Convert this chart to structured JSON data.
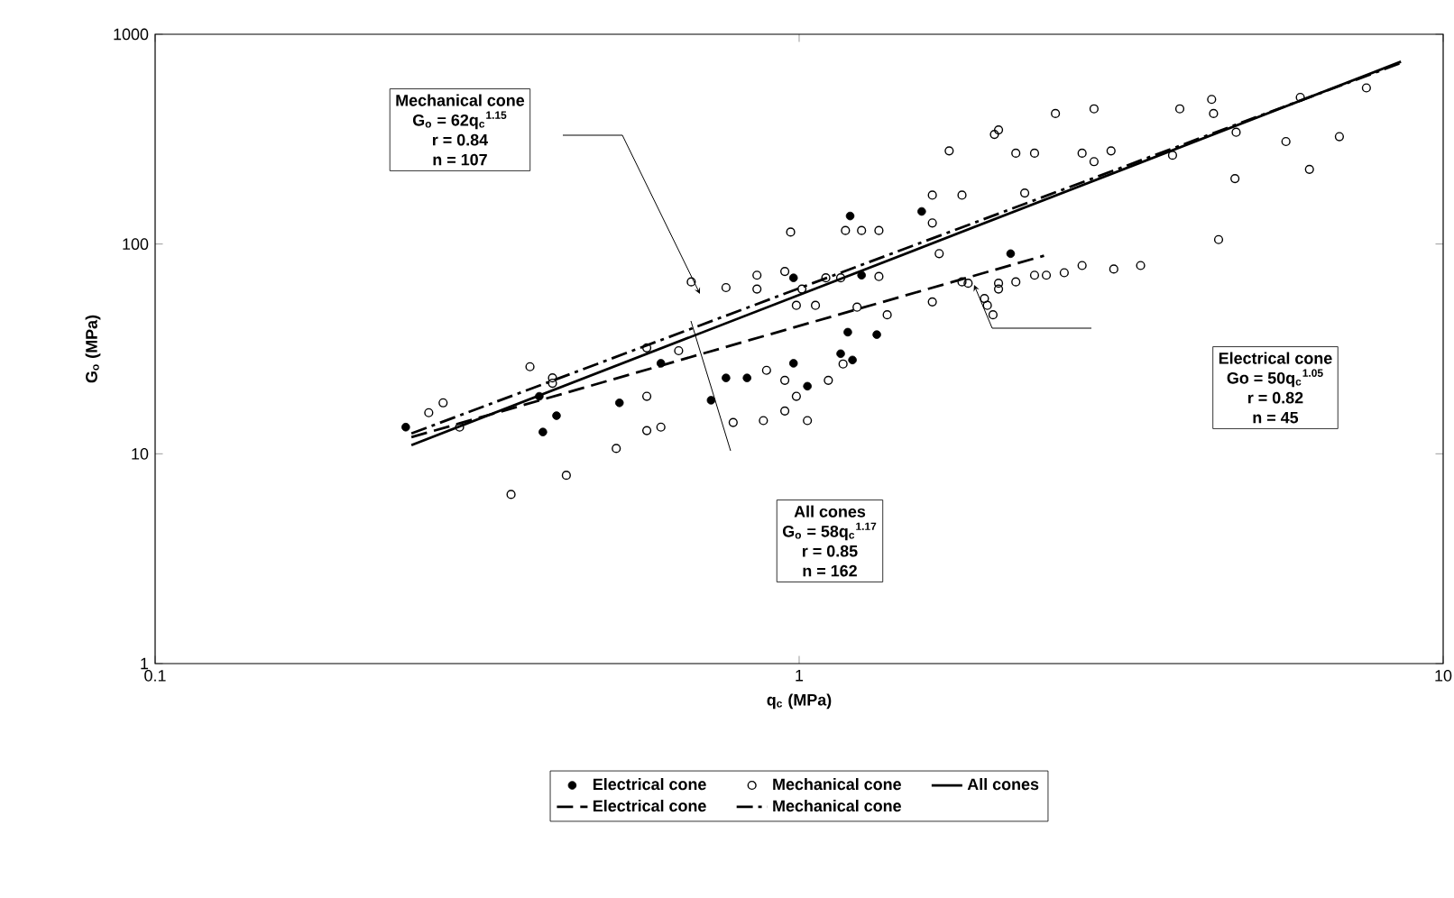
{
  "chart_data": {
    "type": "scatter",
    "xlabel": "q$_{c}$ (MPa)",
    "ylabel": "G$_{o}$ (MPa)",
    "log": "xy",
    "xlim": [
      0.1,
      10
    ],
    "ylim": [
      1,
      1000
    ],
    "xticks": [
      0.1,
      1,
      10
    ],
    "yticks": [
      1,
      10,
      100,
      1000
    ],
    "legend": "bottom",
    "series": [
      {
        "name": "Electrical cone",
        "marker": "circle",
        "color": "#000000",
        "x": [
          0.245,
          0.395,
          0.4,
          0.42,
          0.526,
          0.61,
          0.73,
          0.77,
          0.83,
          0.98,
          1.03,
          1.16,
          1.21,
          1.32,
          1.25,
          1.2,
          1.55,
          0.98,
          1.19,
          2.13
        ],
        "values": [
          13.4,
          18.8,
          12.7,
          15.2,
          17.5,
          27,
          18,
          23,
          23,
          27,
          21,
          30,
          28,
          37,
          71,
          136,
          143,
          69,
          38,
          90
        ]
      },
      {
        "name": "Mechanical cone",
        "marker": "circle_open",
        "color": "#000000",
        "x": [
          0.382,
          0.414,
          0.414,
          0.266,
          0.28,
          0.297,
          0.357,
          0.435,
          0.52,
          0.58,
          0.61,
          0.58,
          0.65,
          0.68,
          0.77,
          0.86,
          0.86,
          0.97,
          0.95,
          1.01,
          1.1,
          1.16,
          1.33,
          1.18,
          1.25,
          1.33,
          1.61,
          1.61,
          1.71,
          1.79,
          2.01,
          0.89,
          0.95,
          0.99,
          0.95,
          0.88,
          0.79,
          1.03,
          1.11,
          1.17,
          0.99,
          1.06,
          1.23,
          1.37,
          1.61,
          1.65,
          1.79,
          1.94,
          2.0,
          0.58,
          2.04,
          2.17,
          2.32,
          2.24,
          2.5,
          2.75,
          2.87,
          2.87,
          3.05,
          3.8,
          3.9,
          4.37,
          4.4,
          4.77,
          4.75,
          4.48,
          5.7,
          6.0,
          6.2,
          6.9,
          7.6,
          2.04,
          2.17,
          2.32,
          2.42,
          2.58,
          2.75,
          3.08,
          3.39,
          1.83,
          1.96,
          2.04
        ],
        "values": [
          26,
          23,
          21.7,
          15.7,
          17.5,
          13.4,
          6.4,
          7.9,
          10.6,
          12.9,
          13.4,
          32,
          31,
          66,
          62,
          71,
          61,
          114,
          74,
          61,
          69,
          69,
          70,
          116,
          116,
          116,
          126,
          171,
          278,
          171,
          333,
          25,
          22.4,
          18.8,
          16,
          14.4,
          14.1,
          14.4,
          22.4,
          26.8,
          51,
          51,
          50,
          46,
          53,
          90,
          66,
          55,
          46,
          18.8,
          350,
          271,
          271,
          175,
          419,
          271,
          441,
          247,
          278,
          265,
          441,
          489,
          419,
          341,
          205,
          105,
          308,
          500,
          227,
          325,
          555,
          65,
          66,
          71,
          71,
          73,
          79,
          76,
          79,
          65,
          51,
          61
        ]
      },
      {
        "name": "All cones",
        "type": "line",
        "line_style": "solid",
        "color": "#000000",
        "x": [
          0.25,
          8.6
        ],
        "values": [
          11,
          740
        ]
      },
      {
        "name": "Electrical cone",
        "type": "line",
        "line_style": "dashed",
        "color": "#000000",
        "x": [
          0.25,
          2.4
        ],
        "values": [
          12,
          88
        ]
      },
      {
        "name": "Mechanical cone",
        "type": "line",
        "line_style": "dashdot",
        "color": "#000000",
        "x": [
          0.25,
          8.6
        ],
        "values": [
          12.5,
          730
        ]
      }
    ],
    "annotations": [
      "Mechanical cone",
      "G$_{o}$ = 62q$_{c}$$^{1.15}$",
      "r = 0.84",
      "n = 107",
      "All cones",
      "G$_{o}$ = 58q$_{c}$$^{1.17}$",
      "r = 0.85",
      "n = 162",
      "Electrical cone",
      "Go = 50q$_{c}$$^{1.05}$",
      "r = 0.82",
      "n = 45"
    ]
  }
}
